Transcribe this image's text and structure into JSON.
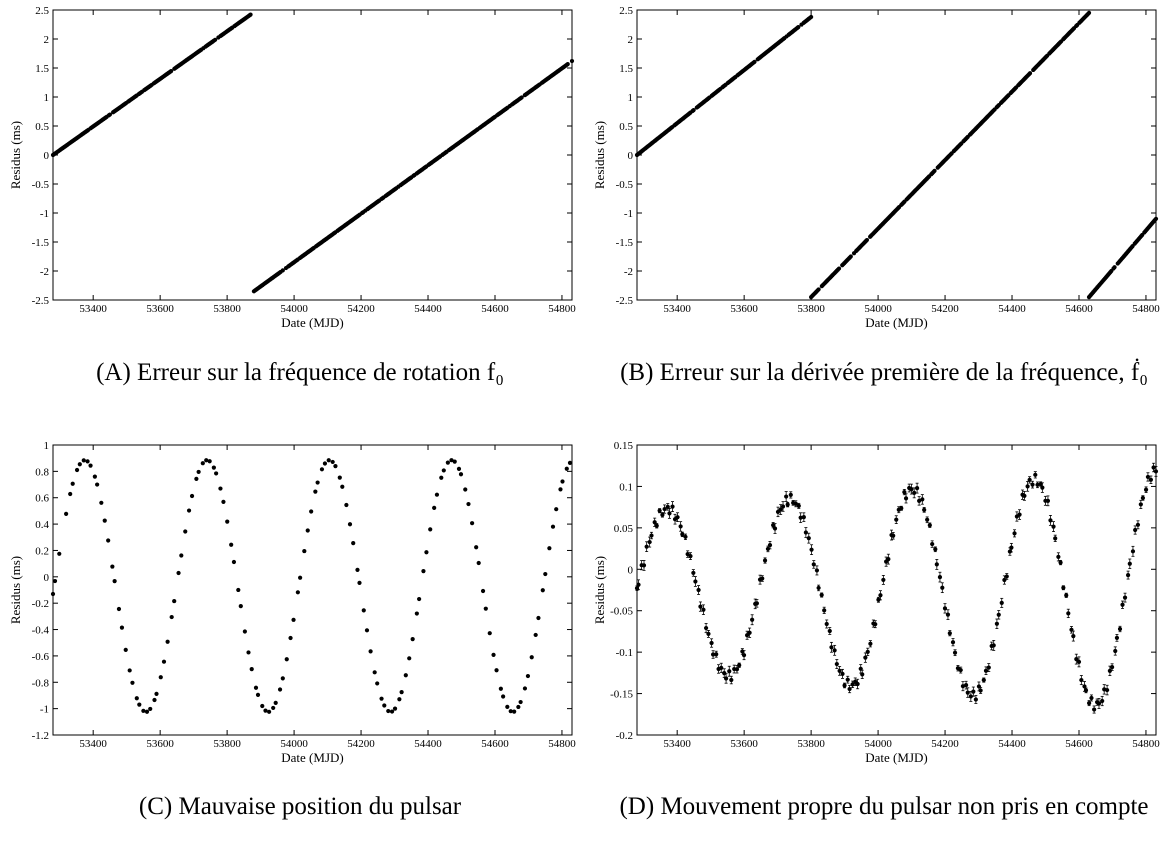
{
  "chart_data": [
    {
      "id": "A",
      "type": "scatter",
      "caption_tag": "(A)",
      "caption": "Erreur sur la fréquence de rotation f₀",
      "xlabel": "Date (MJD)",
      "ylabel": "Residus (ms)",
      "xlim": [
        53280,
        54830
      ],
      "ylim": [
        -2.5,
        2.5
      ],
      "xticks": [
        53400,
        53600,
        53800,
        54000,
        54200,
        54400,
        54600,
        54800
      ],
      "yticks": [
        -2.5,
        -2,
        -1.5,
        -1,
        -0.5,
        0,
        0.5,
        1,
        1.5,
        2,
        2.5
      ],
      "ytick_labels": [
        "-2.5",
        "-2",
        "-1.5",
        "-1",
        "-0.5",
        "0",
        "0.5",
        "1",
        "1.5",
        "2",
        "2.5"
      ],
      "grid": false,
      "segments": [
        {
          "x": [
            53280,
            53870
          ],
          "y": [
            0.0,
            2.42
          ]
        },
        {
          "x": [
            53880,
            54830
          ],
          "y": [
            -2.35,
            1.62
          ]
        }
      ]
    },
    {
      "id": "B",
      "type": "scatter",
      "caption_tag": "(B)",
      "caption": "Erreur sur la dérivée première de la fréquence, ḟ₀",
      "xlabel": "Date (MJD)",
      "ylabel": "Residus (ms)",
      "xlim": [
        53280,
        54830
      ],
      "ylim": [
        -2.5,
        2.5
      ],
      "xticks": [
        53400,
        53600,
        53800,
        54000,
        54200,
        54400,
        54600,
        54800
      ],
      "yticks": [
        -2.5,
        -2,
        -1.5,
        -1,
        -0.5,
        0,
        0.5,
        1,
        1.5,
        2,
        2.5
      ],
      "ytick_labels": [
        "-2.5",
        "-2",
        "-1.5",
        "-1",
        "-0.5",
        "0",
        "0.5",
        "1",
        "1.5",
        "2",
        "2.5"
      ],
      "grid": false,
      "segments": [
        {
          "x": [
            53280,
            53800
          ],
          "y": [
            0.0,
            2.38
          ]
        },
        {
          "x": [
            53800,
            54630
          ],
          "y": [
            -2.45,
            2.45
          ]
        },
        {
          "x": [
            54630,
            54830
          ],
          "y": [
            -2.45,
            -1.1
          ]
        }
      ]
    },
    {
      "id": "C",
      "type": "scatter",
      "caption_tag": "(C)",
      "caption": "Mauvaise position du pulsar",
      "xlabel": "Date (MJD)",
      "ylabel": "Residus (ms)",
      "xlim": [
        53280,
        54830
      ],
      "ylim": [
        -1.2,
        1.0
      ],
      "xticks": [
        53400,
        53600,
        53800,
        54000,
        54200,
        54400,
        54600,
        54800
      ],
      "yticks": [
        -1.2,
        -1,
        -0.8,
        -0.6,
        -0.4,
        -0.2,
        0,
        0.2,
        0.4,
        0.6,
        0.8,
        1
      ],
      "ytick_labels": [
        "-1.2",
        "-1",
        "-0.8",
        "-0.6",
        "-0.4",
        "-0.2",
        "0",
        "0.2",
        "0.4",
        "0.6",
        "0.8",
        "1"
      ],
      "grid": false,
      "model": {
        "form": "sine",
        "mean": -0.07,
        "amplitude": 0.955,
        "period_days": 365.25,
        "peak_mjd": 53375
      }
    },
    {
      "id": "D",
      "type": "scatter",
      "caption_tag": "(D)",
      "caption": "Mouvement propre du pulsar non pris en compte",
      "xlabel": "Date (MJD)",
      "ylabel": "Residus (ms)",
      "xlim": [
        53280,
        54830
      ],
      "ylim": [
        -0.2,
        0.15
      ],
      "xticks": [
        53400,
        53600,
        53800,
        54000,
        54200,
        54400,
        54600,
        54800
      ],
      "yticks": [
        -0.2,
        -0.15,
        -0.1,
        -0.05,
        0,
        0.05,
        0.1,
        0.15
      ],
      "ytick_labels": [
        "-0.2",
        "-0.15",
        "-0.1",
        "-0.05",
        "0",
        "0.05",
        "0.1",
        "0.15"
      ],
      "grid": false,
      "error_bars": true,
      "model": {
        "form": "growing-sine",
        "mean": -0.025,
        "amplitude_start": 0.095,
        "amplitude_end": 0.145,
        "period_days": 365.25,
        "peak_mjd": 53370
      }
    }
  ]
}
